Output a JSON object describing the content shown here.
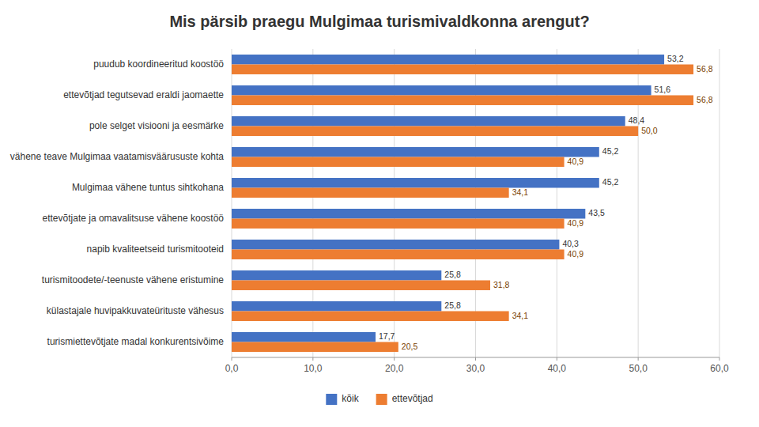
{
  "chart_data": {
    "type": "bar",
    "orientation": "horizontal",
    "title": "Mis pärsib praegu Mulgimaa turismivaldkonna arengut?",
    "categories": [
      "puudub koordineeritud koostöö",
      "ettevõtjad tegutsevad eraldi jaomaette",
      "pole selget visiooni ja eesmärke",
      "vähene teave Mulgimaa vaatamisväärususte kohta",
      "Mulgimaa vähene tuntus sihtkohana",
      "ettevõtjate ja omavalitsuse vähene koostöö",
      "napib kvaliteetseid turismitooteid",
      "turismitoodete/-teenuste vähene eristumine",
      "külastajale huvipakkuvateürituste vähesus",
      "turismiettevõtjate madal konkurentsivõime"
    ],
    "series": [
      {
        "name": "kõik",
        "color": "#4472C4",
        "values": [
          53.2,
          51.6,
          48.4,
          45.2,
          45.2,
          43.5,
          40.3,
          25.8,
          25.8,
          17.7
        ],
        "value_labels": [
          "53,2",
          "51,6",
          "48,4",
          "45,2",
          "45,2",
          "43,5",
          "40,3",
          "25,8",
          "25,8",
          "17,7"
        ]
      },
      {
        "name": "ettevõtjad",
        "color": "#ED7D31",
        "values": [
          56.8,
          56.8,
          50.0,
          40.9,
          34.1,
          40.9,
          40.9,
          31.8,
          34.1,
          20.5
        ],
        "value_labels": [
          "56,8",
          "56,8",
          "50,0",
          "40,9",
          "34,1",
          "40,9",
          "40,9",
          "31,8",
          "34,1",
          "20,5"
        ]
      }
    ],
    "xlim": [
      0,
      60
    ],
    "xticks": [
      {
        "value": 0,
        "label": "0,0"
      },
      {
        "value": 10,
        "label": "10,0"
      },
      {
        "value": 20,
        "label": "20,0"
      },
      {
        "value": 30,
        "label": "30,0"
      },
      {
        "value": 40,
        "label": "40,0"
      },
      {
        "value": 50,
        "label": "50,0"
      },
      {
        "value": 60,
        "label": "60,0"
      }
    ],
    "grid": true,
    "data_labels": true,
    "legend": "bottom"
  }
}
